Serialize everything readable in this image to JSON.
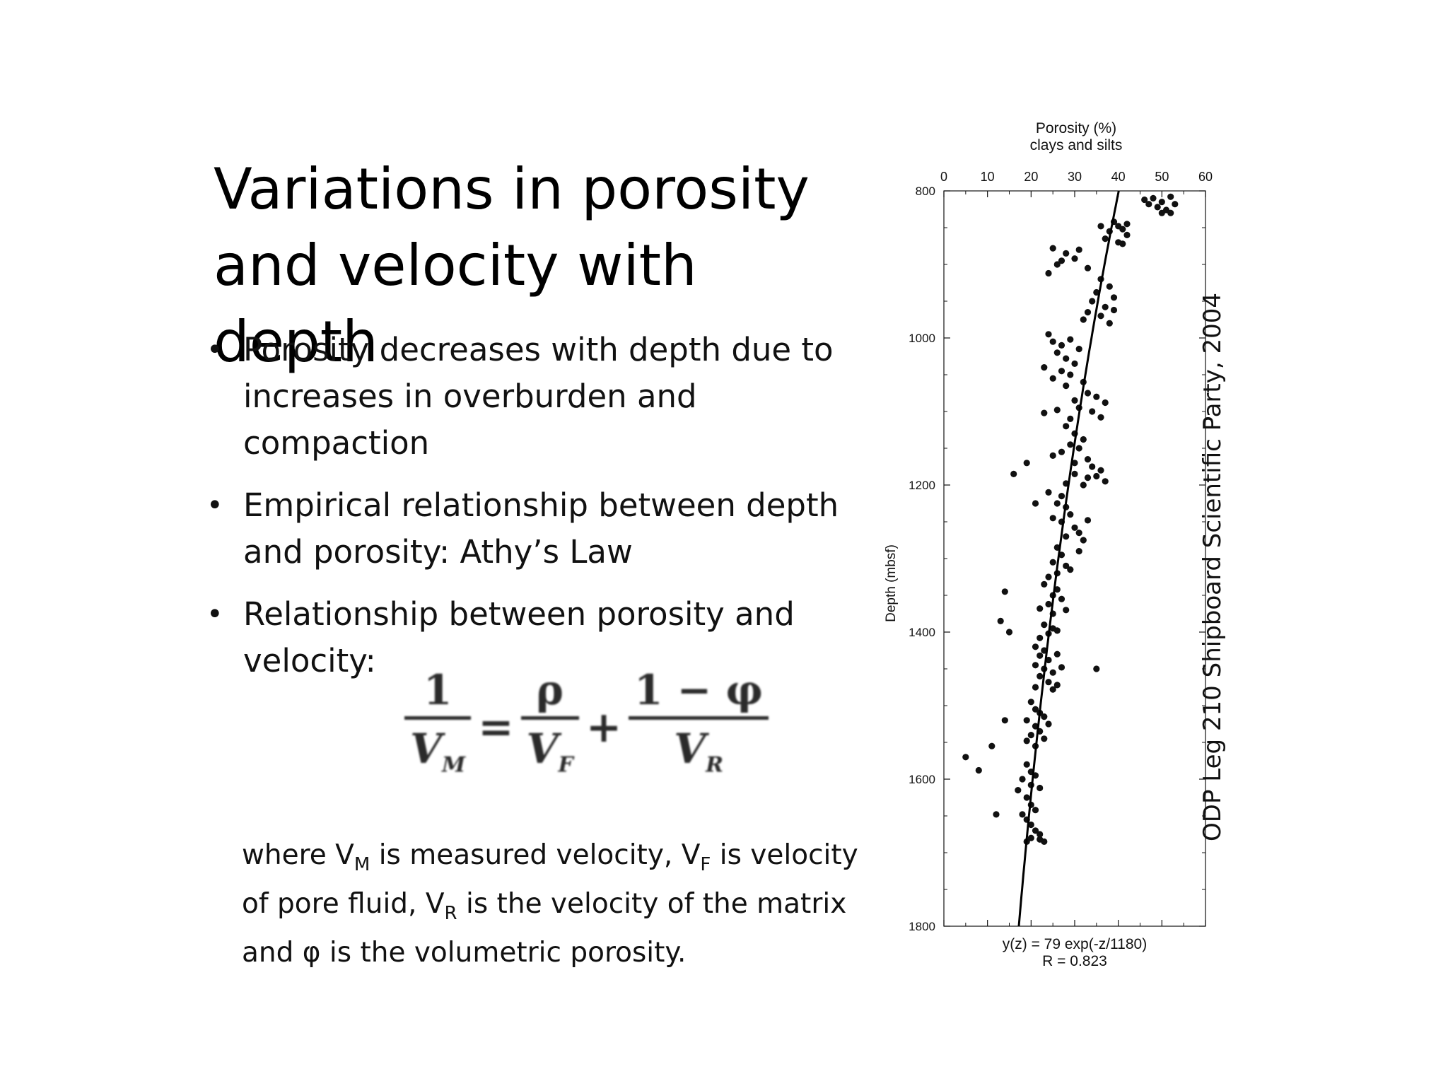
{
  "slide": {
    "title_line1": "Variations in porosity",
    "title_line2": "and velocity with depth",
    "bullets": [
      "Porosity decreases with depth due to increases in overburden and compaction",
      "Empirical relationship between depth and porosity: Athy’s Law",
      "Relationship between porosity and velocity:"
    ],
    "bullet_symbol": "•",
    "equation": {
      "lhs_num": "1",
      "lhs_den": "V",
      "lhs_sub": "M",
      "equals": "=",
      "t1_num": "ρ",
      "t1_den": "V",
      "t1_sub": "F",
      "plus": "+",
      "t2_num": "1 − φ",
      "t2_den": "V",
      "t2_sub": "R"
    },
    "where": {
      "p1": "where V",
      "s1": "M",
      "p2": " is measured velocity, V",
      "s2": "F",
      "p3": " is velocity of pore fluid, V",
      "s3": "R",
      "p4": " is the velocity of the matrix and φ is the volumetric porosity."
    },
    "credit": "ODP Leg 210 Shipboard Scientific Party, 2004"
  },
  "chart_data": {
    "type": "scatter",
    "title": "Porosity (%)",
    "subtitle": "clays and silts",
    "xlabel": "Porosity (%)",
    "ylabel": "Depth (mbsf)",
    "xlim": [
      0,
      60
    ],
    "ylim": [
      800,
      1800
    ],
    "x_ticks": [
      0,
      10,
      20,
      30,
      40,
      50,
      60
    ],
    "y_ticks": [
      800,
      1000,
      1200,
      1400,
      1600,
      1800
    ],
    "fit_equation": "y(z) = 79 exp(-z/1180)",
    "fit_r": "R = 0.823",
    "fit": {
      "a": 79,
      "b": 1180
    },
    "points": [
      [
        48,
        810
      ],
      [
        50,
        815
      ],
      [
        52,
        808
      ],
      [
        49,
        822
      ],
      [
        51,
        826
      ],
      [
        46,
        812
      ],
      [
        53,
        818
      ],
      [
        50,
        830
      ],
      [
        47,
        818
      ],
      [
        52,
        830
      ],
      [
        39,
        842
      ],
      [
        40,
        848
      ],
      [
        38,
        855
      ],
      [
        41,
        852
      ],
      [
        42,
        860
      ],
      [
        37,
        865
      ],
      [
        40,
        870
      ],
      [
        36,
        848
      ],
      [
        41,
        872
      ],
      [
        42,
        845
      ],
      [
        25,
        878
      ],
      [
        28,
        885
      ],
      [
        31,
        880
      ],
      [
        27,
        895
      ],
      [
        30,
        892
      ],
      [
        33,
        905
      ],
      [
        26,
        900
      ],
      [
        24,
        912
      ],
      [
        36,
        920
      ],
      [
        38,
        930
      ],
      [
        35,
        938
      ],
      [
        39,
        945
      ],
      [
        34,
        950
      ],
      [
        37,
        958
      ],
      [
        33,
        965
      ],
      [
        36,
        970
      ],
      [
        39,
        962
      ],
      [
        32,
        975
      ],
      [
        38,
        980
      ],
      [
        24,
        995
      ],
      [
        25,
        1005
      ],
      [
        27,
        1010
      ],
      [
        29,
        1002
      ],
      [
        26,
        1020
      ],
      [
        28,
        1028
      ],
      [
        31,
        1015
      ],
      [
        30,
        1035
      ],
      [
        23,
        1040
      ],
      [
        27,
        1045
      ],
      [
        29,
        1050
      ],
      [
        32,
        1060
      ],
      [
        25,
        1055
      ],
      [
        28,
        1065
      ],
      [
        33,
        1075
      ],
      [
        35,
        1080
      ],
      [
        37,
        1088
      ],
      [
        30,
        1085
      ],
      [
        31,
        1095
      ],
      [
        34,
        1100
      ],
      [
        36,
        1108
      ],
      [
        29,
        1110
      ],
      [
        26,
        1098
      ],
      [
        23,
        1102
      ],
      [
        28,
        1120
      ],
      [
        30,
        1130
      ],
      [
        32,
        1138
      ],
      [
        29,
        1145
      ],
      [
        31,
        1150
      ],
      [
        27,
        1155
      ],
      [
        25,
        1160
      ],
      [
        33,
        1165
      ],
      [
        30,
        1170
      ],
      [
        34,
        1175
      ],
      [
        36,
        1180
      ],
      [
        35,
        1188
      ],
      [
        33,
        1190
      ],
      [
        37,
        1195
      ],
      [
        30,
        1185
      ],
      [
        32,
        1200
      ],
      [
        28,
        1198
      ],
      [
        16,
        1185
      ],
      [
        19,
        1170
      ],
      [
        24,
        1210
      ],
      [
        27,
        1215
      ],
      [
        26,
        1225
      ],
      [
        28,
        1230
      ],
      [
        29,
        1240
      ],
      [
        25,
        1245
      ],
      [
        21,
        1225
      ],
      [
        27,
        1250
      ],
      [
        30,
        1258
      ],
      [
        31,
        1265
      ],
      [
        28,
        1270
      ],
      [
        33,
        1248
      ],
      [
        32,
        1275
      ],
      [
        26,
        1285
      ],
      [
        27,
        1295
      ],
      [
        25,
        1305
      ],
      [
        28,
        1310
      ],
      [
        26,
        1320
      ],
      [
        24,
        1325
      ],
      [
        29,
        1315
      ],
      [
        31,
        1290
      ],
      [
        23,
        1335
      ],
      [
        26,
        1342
      ],
      [
        25,
        1350
      ],
      [
        27,
        1355
      ],
      [
        24,
        1362
      ],
      [
        22,
        1368
      ],
      [
        28,
        1370
      ],
      [
        25,
        1375
      ],
      [
        14,
        1345
      ],
      [
        13,
        1385
      ],
      [
        23,
        1390
      ],
      [
        25,
        1395
      ],
      [
        24,
        1402
      ],
      [
        22,
        1408
      ],
      [
        26,
        1398
      ],
      [
        15,
        1400
      ],
      [
        21,
        1420
      ],
      [
        23,
        1425
      ],
      [
        22,
        1432
      ],
      [
        24,
        1438
      ],
      [
        26,
        1430
      ],
      [
        21,
        1445
      ],
      [
        23,
        1450
      ],
      [
        25,
        1455
      ],
      [
        27,
        1448
      ],
      [
        35,
        1450
      ],
      [
        22,
        1460
      ],
      [
        24,
        1468
      ],
      [
        26,
        1472
      ],
      [
        21,
        1475
      ],
      [
        25,
        1478
      ],
      [
        20,
        1495
      ],
      [
        21,
        1505
      ],
      [
        22,
        1510
      ],
      [
        23,
        1515
      ],
      [
        19,
        1520
      ],
      [
        21,
        1528
      ],
      [
        24,
        1525
      ],
      [
        22,
        1535
      ],
      [
        20,
        1540
      ],
      [
        19,
        1548
      ],
      [
        21,
        1555
      ],
      [
        23,
        1545
      ],
      [
        14,
        1520
      ],
      [
        11,
        1555
      ],
      [
        5,
        1570
      ],
      [
        19,
        1580
      ],
      [
        20,
        1590
      ],
      [
        21,
        1595
      ],
      [
        18,
        1600
      ],
      [
        20,
        1608
      ],
      [
        17,
        1615
      ],
      [
        22,
        1612
      ],
      [
        8,
        1588
      ],
      [
        19,
        1625
      ],
      [
        20,
        1635
      ],
      [
        21,
        1642
      ],
      [
        18,
        1648
      ],
      [
        19,
        1655
      ],
      [
        20,
        1662
      ],
      [
        21,
        1670
      ],
      [
        22,
        1675
      ],
      [
        20,
        1680
      ],
      [
        19,
        1685
      ],
      [
        22,
        1682
      ],
      [
        23,
        1685
      ],
      [
        12,
        1648
      ]
    ]
  }
}
